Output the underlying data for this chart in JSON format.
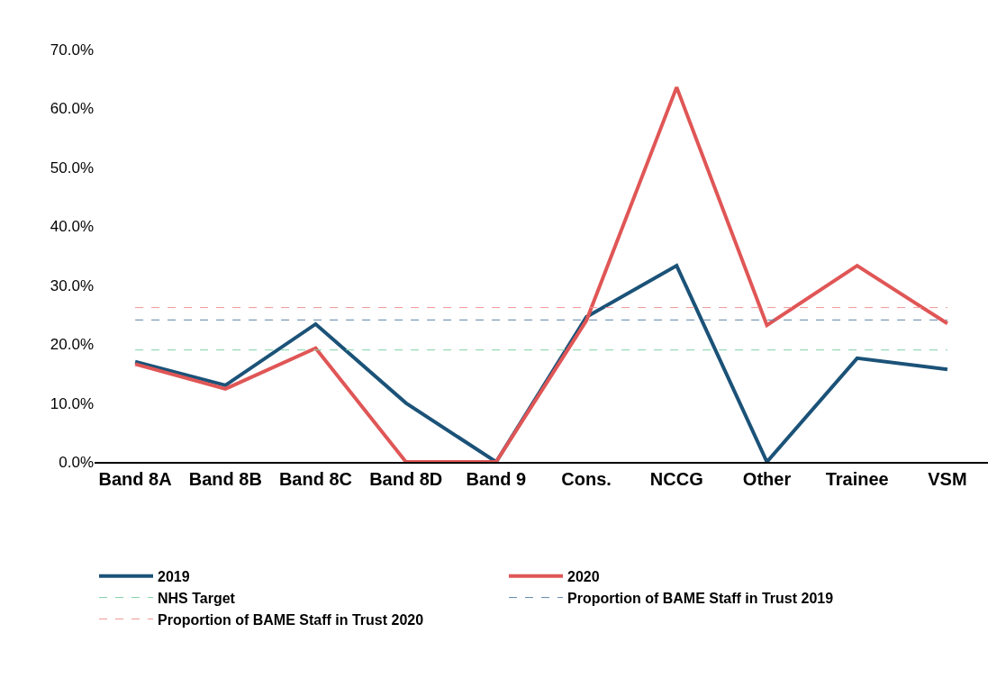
{
  "chart_data": {
    "type": "line",
    "categories": [
      "Band 8A",
      "Band 8B",
      "Band 8C",
      "Band 8D",
      "Band 9",
      "Cons.",
      "NCCG",
      "Other",
      "Trainee",
      "VSM"
    ],
    "series": [
      {
        "name": "2019",
        "color": "#1b5278",
        "values": [
          17.0,
          13.0,
          23.4,
          10.0,
          0,
          24.6,
          33.3,
          0,
          17.6,
          15.7
        ]
      },
      {
        "name": "2020",
        "color": "#e05656",
        "values": [
          16.6,
          12.4,
          19.3,
          0,
          0,
          24.0,
          63.6,
          23.2,
          33.3,
          23.5
        ]
      }
    ],
    "ref_lines": [
      {
        "axis": "y",
        "value": 19.0,
        "label": "NHS Target",
        "color": "#7fd0a6",
        "line_style": "dashed"
      },
      {
        "axis": "y",
        "value": 24.1,
        "label": "Proportion of BAME Staff in Trust 2019",
        "color": "#5b84a6",
        "line_style": "dashed"
      },
      {
        "axis": "y",
        "value": 26.2,
        "label": "Proportion of BAME Staff in Trust 2020",
        "color": "#f29494",
        "line_style": "dashed"
      }
    ],
    "ylim": [
      0,
      70
    ],
    "yticks": [
      {
        "value": 0,
        "label": "0.0%"
      },
      {
        "value": 10,
        "label": "10.0%"
      },
      {
        "value": 20,
        "label": "20.0%"
      },
      {
        "value": 30,
        "label": "30.0%"
      },
      {
        "value": 40,
        "label": "40.0%"
      },
      {
        "value": 50,
        "label": "50.0%"
      },
      {
        "value": 60,
        "label": "60.0%"
      },
      {
        "value": 70,
        "label": "70.0%"
      }
    ],
    "legend": "bottom",
    "marker": "none",
    "line_style": "solid"
  }
}
